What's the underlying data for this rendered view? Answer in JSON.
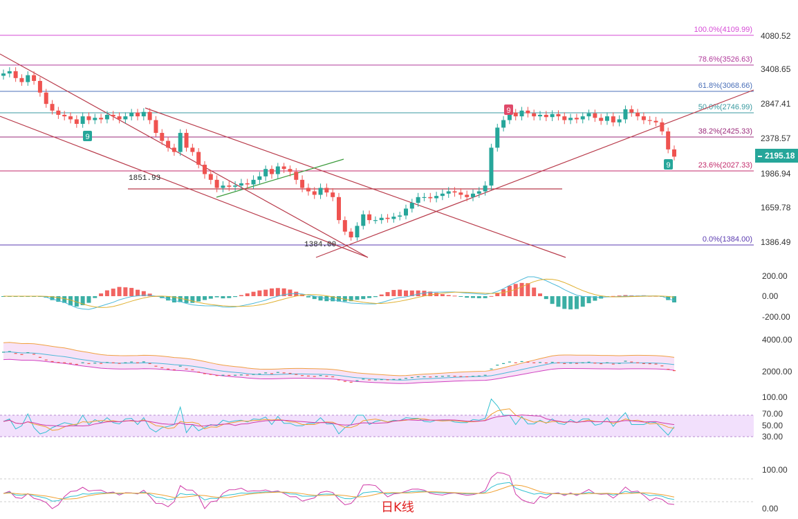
{
  "chart_data": {
    "type": "candlestick",
    "main": {
      "price_axis_ticks": [
        "4080.52",
        "3408.65",
        "2847.41",
        "2378.57",
        "1986.94",
        "1659.78",
        "1386.49"
      ],
      "current_price": "2195.18",
      "fib_levels": [
        {
          "label": "100.0%(4109.99)",
          "price": 4109.99,
          "color": "#d64ad6"
        },
        {
          "label": "78.6%(3526.63)",
          "price": 3526.63,
          "color": "#b0389a"
        },
        {
          "label": "61.8%(3068.66)",
          "price": 3068.66,
          "color": "#4a6fb8"
        },
        {
          "label": "50.0%(2746.99)",
          "price": 2746.99,
          "color": "#3a9aa0"
        },
        {
          "label": "38.2%(2425.33)",
          "price": 2425.33,
          "color": "#9a2a7a"
        },
        {
          "label": "23.6%(2027.33)",
          "price": 2027.33,
          "color": "#c22a6a"
        },
        {
          "label": "0.0%(1384.00)",
          "price": 1384.0,
          "color": "#5a3ab0"
        }
      ],
      "annotations": {
        "low_label": "1384.00",
        "support_label": "1851.93",
        "td_marks": [
          "9",
          "9",
          "9"
        ]
      },
      "closes": [
        3380,
        3420,
        3300,
        3230,
        3350,
        3250,
        3050,
        2880,
        2780,
        2720,
        2700,
        2660,
        2600,
        2700,
        2650,
        2680,
        2660,
        2720,
        2700,
        2660,
        2700,
        2750,
        2700,
        2760,
        2650,
        2480,
        2380,
        2300,
        2250,
        2480,
        2300,
        2250,
        2100,
        2000,
        1950,
        1880,
        1900,
        1890,
        1900,
        1920,
        1910,
        1950,
        1980,
        2050,
        2000,
        2080,
        2050,
        2020,
        1950,
        1880,
        1850,
        1820,
        1880,
        1840,
        1800,
        1600,
        1500,
        1450,
        1550,
        1650,
        1600,
        1600,
        1620,
        1610,
        1630,
        1640,
        1700,
        1750,
        1800,
        1800,
        1790,
        1810,
        1830,
        1850,
        1840,
        1820,
        1800,
        1830,
        1850,
        1900,
        2300,
        2550,
        2650,
        2750,
        2700,
        2780,
        2740,
        2700,
        2720,
        2690,
        2730,
        2700,
        2650,
        2680,
        2660,
        2700,
        2740,
        2680,
        2640,
        2700,
        2620,
        2660,
        2800,
        2750,
        2700,
        2650,
        2640,
        2620,
        2500,
        2280,
        2195
      ],
      "macd": {
        "ticks": [
          "200.00",
          "0.00",
          "-200.00"
        ]
      },
      "bollinger": {
        "ticks": [
          "4000.00",
          "2000.00"
        ]
      },
      "rsi": {
        "ticks": [
          "100.00",
          "70.00",
          "50.00",
          "30.00"
        ]
      },
      "kdj": {
        "ticks": [
          "100.00",
          "0.00"
        ]
      }
    }
  },
  "caption": "日K线",
  "colors": {
    "up": "#26a69a",
    "down": "#ef5350",
    "grid": "#eeeeee"
  }
}
